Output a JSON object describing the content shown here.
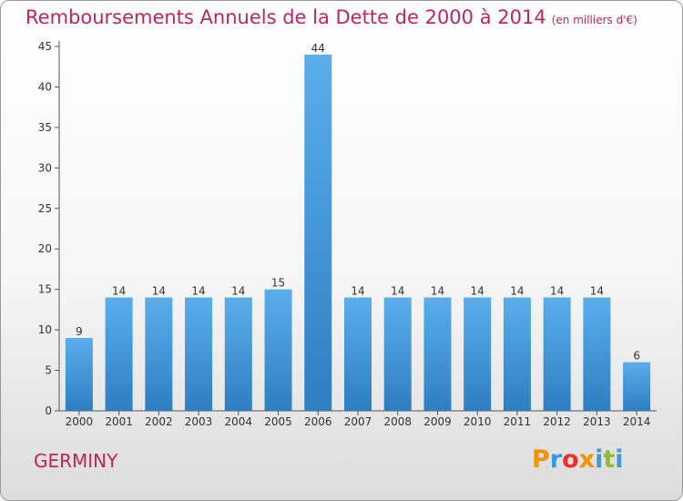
{
  "chart_data": {
    "type": "bar",
    "title": "Remboursements Annuels de la Dette de 2000 à 2014",
    "unit_note": "(en milliers d'€)",
    "categories": [
      "2000",
      "2001",
      "2002",
      "2003",
      "2004",
      "2005",
      "2006",
      "2007",
      "2008",
      "2009",
      "2010",
      "2011",
      "2012",
      "2013",
      "2014"
    ],
    "values": [
      9,
      14,
      14,
      14,
      14,
      15,
      44,
      14,
      14,
      14,
      14,
      14,
      14,
      14,
      6
    ],
    "ylim": [
      0,
      45
    ],
    "yticks": [
      0,
      5,
      10,
      15,
      20,
      25,
      30,
      35,
      40,
      45
    ],
    "grid": false,
    "bar_color": "#4a9ee0"
  },
  "commune": "GERMINY",
  "logo": {
    "text": "Proxiti",
    "letter_colors": [
      "#f39200",
      "#3b9bd6",
      "#e8302c",
      "#f39200",
      "#3b9bd6",
      "#8dbf2f",
      "#3b9bd6"
    ]
  }
}
